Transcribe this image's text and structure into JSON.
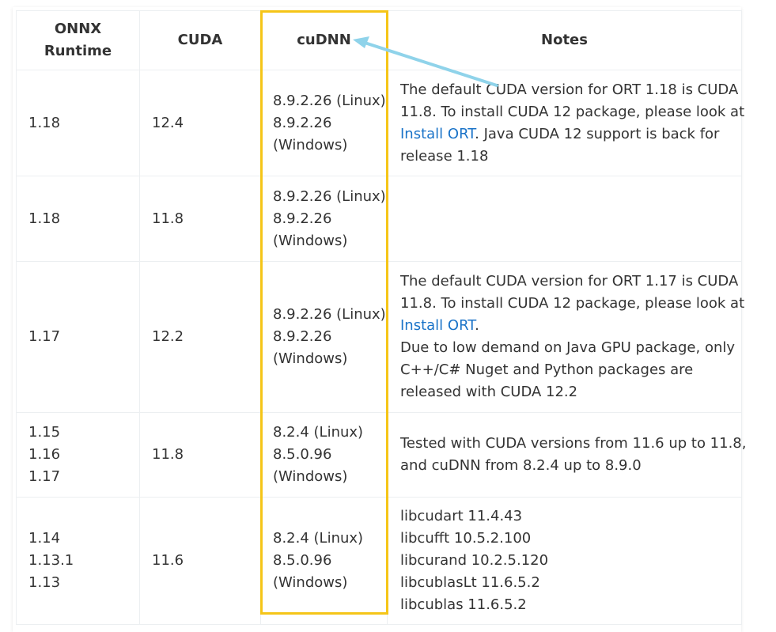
{
  "table": {
    "headers": {
      "runtime": [
        "ONNX",
        "Runtime"
      ],
      "cuda": "CUDA",
      "cudnn": "cuDNN",
      "notes": "Notes"
    },
    "rows": [
      {
        "runtime": [
          "1.18"
        ],
        "cuda": "12.4",
        "cudnn": [
          "8.9.2.26 (Linux)",
          "8.9.2.26",
          "(Windows)"
        ],
        "notes": [
          [
            {
              "t": "The default CUDA version for ORT 1.18 is CUDA"
            }
          ],
          [
            {
              "t": "11.8. To install CUDA 12 package, please look at"
            }
          ],
          [
            {
              "t": "Install ORT",
              "link": true
            },
            {
              "t": ". Java CUDA 12 support is back for"
            }
          ],
          [
            {
              "t": "release 1.18"
            }
          ]
        ]
      },
      {
        "runtime": [
          "1.18"
        ],
        "cuda": "11.8",
        "cudnn": [
          "8.9.2.26 (Linux)",
          "8.9.2.26",
          "(Windows)"
        ],
        "notes": []
      },
      {
        "runtime": [
          "1.17"
        ],
        "cuda": "12.2",
        "cudnn": [
          "8.9.2.26 (Linux)",
          "8.9.2.26",
          "(Windows)"
        ],
        "notes": [
          [
            {
              "t": "The default CUDA version for ORT 1.17 is CUDA"
            }
          ],
          [
            {
              "t": "11.8. To install CUDA 12 package, please look at"
            }
          ],
          [
            {
              "t": "Install ORT",
              "link": true
            },
            {
              "t": "."
            }
          ],
          [
            {
              "t": "Due to low demand on Java GPU package, only"
            }
          ],
          [
            {
              "t": "C++/C# Nuget and Python packages are"
            }
          ],
          [
            {
              "t": "released with CUDA 12.2"
            }
          ]
        ]
      },
      {
        "runtime": [
          "1.15",
          "1.16",
          "1.17"
        ],
        "cuda": "11.8",
        "cudnn": [
          "8.2.4 (Linux)",
          "8.5.0.96",
          "(Windows)"
        ],
        "notes": [
          [
            {
              "t": "Tested with CUDA versions from 11.6 up to 11.8,"
            }
          ],
          [
            {
              "t": "and cuDNN from 8.2.4 up to 8.9.0"
            }
          ]
        ]
      },
      {
        "runtime": [
          "1.14",
          "1.13.1",
          "1.13"
        ],
        "cuda": "11.6",
        "cudnn": [
          "8.2.4 (Linux)",
          "8.5.0.96",
          "(Windows)"
        ],
        "notes": [
          [
            {
              "t": "libcudart 11.4.43"
            }
          ],
          [
            {
              "t": "libcufft 10.5.2.100"
            }
          ],
          [
            {
              "t": "libcurand 10.2.5.120"
            }
          ],
          [
            {
              "t": "libcublasLt 11.6.5.2"
            }
          ],
          [
            {
              "t": "libcublas 11.6.5.2"
            }
          ]
        ]
      }
    ]
  },
  "annotations": {
    "highlight_color": "#f5c518",
    "arrow_color": "#8fd3ea",
    "link_color": "#1a73c8"
  }
}
